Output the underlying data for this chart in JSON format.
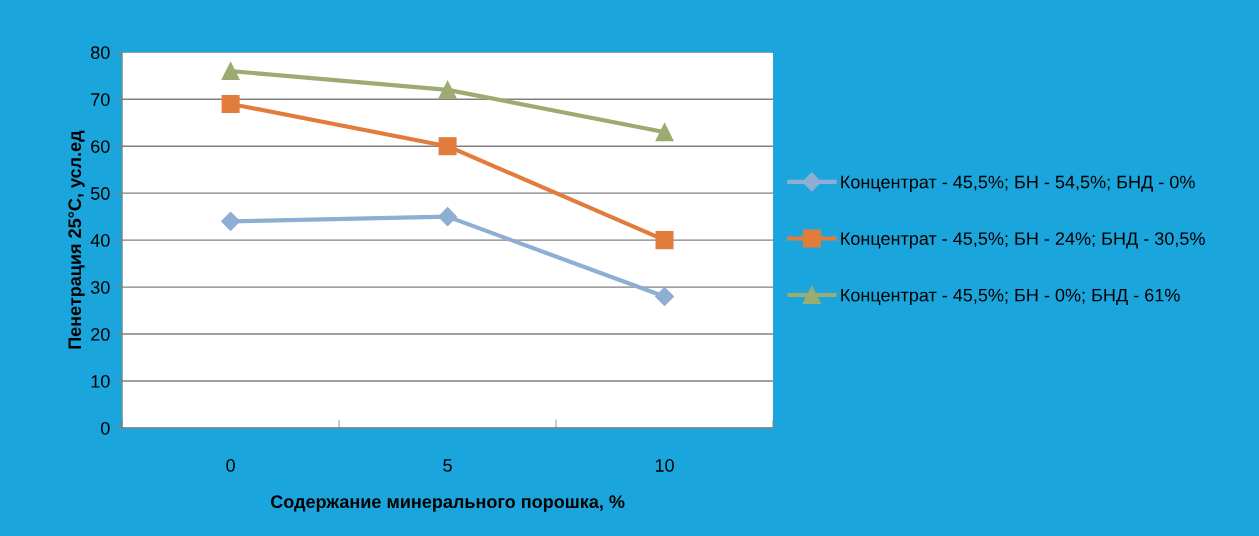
{
  "chart_data": {
    "type": "line",
    "xlabel": "Содержание минерального порошка, %",
    "ylabel": "Пенетрация 25°C, усл.ед",
    "categories": [
      "0",
      "5",
      "10"
    ],
    "series": [
      {
        "name": "Концентрат - 45,5%; БН - 54,5%; БНД - 0%",
        "color": "#8eaed4",
        "marker": "diamond",
        "values": [
          44,
          45,
          28
        ]
      },
      {
        "name": "Концентрат - 45,5%; БН - 24%; БНД - 30,5%",
        "color": "#e27c3c",
        "marker": "square",
        "values": [
          69,
          60,
          40
        ]
      },
      {
        "name": "Концентрат - 45,5%; БН - 0%; БНД - 61%",
        "color": "#9dab72",
        "marker": "triangle",
        "values": [
          76,
          72,
          63
        ]
      }
    ],
    "ylim": [
      0,
      80
    ],
    "yticks": [
      0,
      10,
      20,
      30,
      40,
      50,
      60,
      70,
      80
    ],
    "grid": "y",
    "legend": "right",
    "line_style": "solid"
  }
}
